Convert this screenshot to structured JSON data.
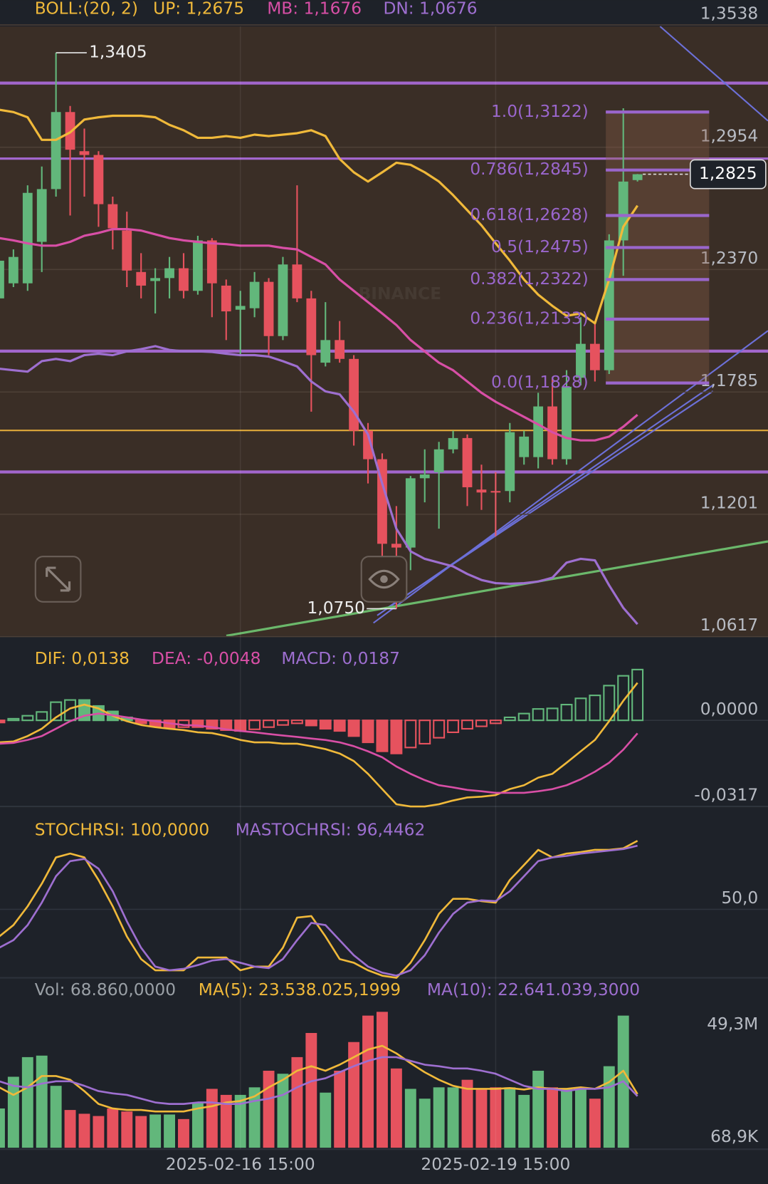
{
  "chart_data": [
    {
      "type": "candlestick",
      "indicator": "BOLL:(20, 2)",
      "indicator_color": "#f0b93a",
      "up_color": "#62b77b",
      "down_color": "#e6525e",
      "watermark": "BINANCE",
      "grid": true,
      "ylim": [
        1.0617,
        1.3538
      ],
      "yticks": [
        {
          "value": 1.3538,
          "label": "1,3538"
        },
        {
          "value": 1.2954,
          "label": "1,2954"
        },
        {
          "value": 1.237,
          "label": "1,2370"
        },
        {
          "value": 1.1785,
          "label": "1,1785"
        },
        {
          "value": 1.1201,
          "label": "1,1201"
        },
        {
          "value": 1.0617,
          "label": "1,0617"
        }
      ],
      "open": [
        1.2232,
        1.2304,
        1.2304,
        1.2502,
        1.2754,
        1.3122,
        1.2935,
        1.2917,
        1.2682,
        1.2556,
        1.2358,
        1.2315,
        1.2329,
        1.2376,
        1.2268,
        1.2509,
        1.2293,
        1.2178,
        1.2185,
        1.2311,
        1.2052,
        1.2394,
        1.2232,
        1.1925,
        1.2033,
        1.1943,
        1.16,
        1.1464,
        1.106,
        1.1042,
        1.1373,
        1.1402,
        1.1511,
        1.1565,
        1.1319,
        1.1312,
        1.1312,
        1.1474,
        1.1474,
        1.1716,
        1.1464,
        1.1853,
        1.2015,
        1.1889,
        1.2509,
        1.2797
      ],
      "high": [
        1.243,
        1.2466,
        1.2772,
        1.2862,
        1.3405,
        1.3151,
        1.3043,
        1.2935,
        1.2718,
        1.2646,
        1.2448,
        1.2376,
        1.243,
        1.2448,
        1.2531,
        1.252,
        1.2322,
        1.2268,
        1.2358,
        1.2329,
        1.243,
        1.2772,
        1.2268,
        1.2214,
        1.2124,
        1.1961,
        1.1637,
        1.1492,
        1.124,
        1.1384,
        1.1511,
        1.1547,
        1.16,
        1.1582,
        1.1438,
        1.1402,
        1.1637,
        1.16,
        1.1781,
        1.1853,
        1.1889,
        1.2142,
        1.2124,
        1.2538,
        1.314,
        1.2826
      ],
      "low": [
        1.2214,
        1.2286,
        1.2268,
        1.2358,
        1.2718,
        1.2628,
        1.2718,
        1.2574,
        1.2466,
        1.2286,
        1.2232,
        1.216,
        1.2232,
        1.2232,
        1.225,
        1.2142,
        1.2033,
        1.1961,
        1.2142,
        1.1961,
        1.2033,
        1.2214,
        1.1691,
        1.1907,
        1.1925,
        1.1529,
        1.1348,
        1.0988,
        1.075,
        1.0934,
        1.1258,
        1.1132,
        1.1492,
        1.124,
        1.1222,
        1.1096,
        1.1258,
        1.1438,
        1.142,
        1.1438,
        1.1438,
        1.1817,
        1.1835,
        1.1871,
        1.234,
        1.279
      ],
      "close": [
        1.2412,
        1.243,
        1.2736,
        1.2754,
        1.3122,
        1.2942,
        1.2917,
        1.2682,
        1.2567,
        1.2365,
        1.2293,
        1.2329,
        1.2376,
        1.2268,
        1.2509,
        1.2304,
        1.217,
        1.2196,
        1.2311,
        1.2052,
        1.2394,
        1.2232,
        1.1961,
        1.2033,
        1.1943,
        1.16,
        1.1464,
        1.106,
        1.1042,
        1.1373,
        1.1391,
        1.1511,
        1.1565,
        1.133,
        1.1305,
        1.1305,
        1.1593,
        1.1572,
        1.1716,
        1.1464,
        1.181,
        1.2015,
        1.1889,
        1.2509,
        1.279,
        1.2825
      ],
      "series": [
        {
          "name": "UP: 1,2675",
          "color": "#f0b93a",
          "values": [
            1.3133,
            1.3122,
            1.3097,
            1.2989,
            1.2989,
            1.3025,
            1.3086,
            1.3097,
            1.3104,
            1.3104,
            1.3104,
            1.3097,
            1.3061,
            1.3035,
            1.2999,
            1.2999,
            1.3007,
            1.2999,
            1.3014,
            1.3007,
            1.3014,
            1.3021,
            1.3035,
            1.3007,
            1.2898,
            1.2834,
            1.279,
            1.2834,
            1.288,
            1.287,
            1.2834,
            1.279,
            1.2725,
            1.2653,
            1.2581,
            1.2495,
            1.2412,
            1.2322,
            1.225,
            1.2196,
            1.2149,
            1.216,
            1.2113,
            1.2322,
            1.2574,
            1.2675
          ]
        },
        {
          "name": "MB: 1,1676",
          "color": "#d84fa6",
          "values": [
            1.252,
            1.2509,
            1.2495,
            1.2484,
            1.2484,
            1.2502,
            1.2531,
            1.2545,
            1.2563,
            1.2563,
            1.2556,
            1.2538,
            1.252,
            1.2509,
            1.2502,
            1.2495,
            1.2491,
            1.2484,
            1.2484,
            1.2484,
            1.2473,
            1.2466,
            1.243,
            1.2394,
            1.2322,
            1.2268,
            1.2214,
            1.216,
            1.2105,
            1.2033,
            1.1979,
            1.1925,
            1.1889,
            1.1835,
            1.1781,
            1.1738,
            1.1702,
            1.1666,
            1.163,
            1.1593,
            1.1565,
            1.1554,
            1.1554,
            1.1572,
            1.1619,
            1.1676
          ]
        },
        {
          "name": "DN: 1,0676",
          "color": "#9e6fd0",
          "values": [
            1.1896,
            1.1889,
            1.1882,
            1.1932,
            1.1943,
            1.1932,
            1.1961,
            1.1968,
            1.1961,
            1.1979,
            1.199,
            1.2004,
            1.1986,
            1.1979,
            1.1979,
            1.1976,
            1.1968,
            1.1961,
            1.1961,
            1.1954,
            1.1932,
            1.1907,
            1.1835,
            1.1788,
            1.1774,
            1.1691,
            1.1582,
            1.1348,
            1.1132,
            1.1024,
            1.0988,
            1.097,
            1.0952,
            1.0916,
            1.0887,
            1.0872,
            1.0869,
            1.0872,
            1.088,
            1.0898,
            1.097,
            1.0988,
            1.0981,
            1.0862,
            1.0754,
            1.0676
          ]
        }
      ],
      "fib_color": "#9a66cc",
      "fib_levels": [
        {
          "label": "1.0(1,3122)",
          "value": 1.3122
        },
        {
          "label": "0.786(1,2845)",
          "value": 1.2845
        },
        {
          "label": "0.618(1,2628)",
          "value": 1.2628
        },
        {
          "label": "0.5(1,2475)",
          "value": 1.2475
        },
        {
          "label": "0.382(1,2322)",
          "value": 1.2322
        },
        {
          "label": "0.236(1,2133)",
          "value": 1.2133
        },
        {
          "label": "0.0(1,1828)",
          "value": 1.1828
        }
      ],
      "high_label": {
        "value": 1.3405,
        "label": "1,3405"
      },
      "low_label": {
        "value": 1.075,
        "label": "1,0750"
      },
      "last_price": {
        "value": 1.2825,
        "label": "1,2825"
      }
    },
    {
      "type": "macd",
      "up_color": "#62b77b",
      "down_color": "#e6525e",
      "grid": true,
      "ylim": [
        -0.0317,
        0.0303
      ],
      "yticks": [
        {
          "value": 0,
          "label": "0,0000"
        },
        {
          "value": -0.0317,
          "label": "-0,0317"
        }
      ],
      "series": [
        {
          "name": "DIF: 0,0138",
          "color": "#f0b93a",
          "values": [
            -0.0081,
            -0.0078,
            -0.0058,
            -0.0031,
            0.0011,
            0.0044,
            0.0058,
            0.0044,
            0.0017,
            -0.0003,
            -0.0017,
            -0.0025,
            -0.0031,
            -0.0036,
            -0.0044,
            -0.0047,
            -0.0058,
            -0.0072,
            -0.0081,
            -0.0081,
            -0.0086,
            -0.0086,
            -0.0095,
            -0.0106,
            -0.0122,
            -0.015,
            -0.0197,
            -0.0253,
            -0.0309,
            -0.0317,
            -0.0317,
            -0.0309,
            -0.0295,
            -0.0284,
            -0.0281,
            -0.0275,
            -0.0253,
            -0.0239,
            -0.0211,
            -0.0197,
            -0.0156,
            -0.0114,
            -0.0072,
            -0.0003,
            0.0072,
            0.0138
          ]
        },
        {
          "name": "DEA: -0,0048",
          "color": "#d84fa6",
          "values": [
            -0.0086,
            -0.0083,
            -0.0072,
            -0.0058,
            -0.0031,
            -0.0003,
            0.0017,
            0.0025,
            0.0019,
            0.0011,
            0.0003,
            -0.0003,
            -0.0011,
            -0.0017,
            -0.0019,
            -0.0025,
            -0.0033,
            -0.0039,
            -0.0044,
            -0.005,
            -0.0056,
            -0.0061,
            -0.0067,
            -0.0072,
            -0.0081,
            -0.0095,
            -0.0114,
            -0.0136,
            -0.017,
            -0.0197,
            -0.022,
            -0.0239,
            -0.0247,
            -0.0256,
            -0.0261,
            -0.0267,
            -0.0267,
            -0.0267,
            -0.0261,
            -0.0253,
            -0.0239,
            -0.0217,
            -0.0189,
            -0.0156,
            -0.0108,
            -0.0048
          ]
        },
        {
          "name": "MACD: 0,0187",
          "color": "#9e6fd0",
          "style": "histogram",
          "values": [
            -0.0008,
            0.0006,
            0.0017,
            0.0031,
            0.0067,
            0.0075,
            0.0075,
            0.0053,
            0.0033,
            0.0011,
            -0.0011,
            -0.0022,
            -0.0028,
            -0.0025,
            -0.0025,
            -0.0031,
            -0.0036,
            -0.0039,
            -0.0033,
            -0.0025,
            -0.0017,
            -0.0011,
            -0.0019,
            -0.0031,
            -0.0039,
            -0.0058,
            -0.0081,
            -0.0114,
            -0.0122,
            -0.01,
            -0.0086,
            -0.0064,
            -0.0044,
            -0.0031,
            -0.0022,
            -0.0011,
            0.0011,
            0.0025,
            0.0042,
            0.0044,
            0.0058,
            0.0081,
            0.0092,
            0.0128,
            0.0164,
            0.0187
          ]
        }
      ]
    },
    {
      "type": "line",
      "grid": true,
      "ylim": [
        0,
        124
      ],
      "yticks": [
        {
          "value": 50,
          "label": "50,0"
        }
      ],
      "series": [
        {
          "name": "STOCHRSI: 100,0000",
          "color": "#f0b93a",
          "values": [
            30.2,
            38.5,
            52.2,
            68.7,
            87.9,
            90.7,
            87.9,
            71.4,
            52.2,
            30.2,
            13.7,
            5.5,
            5.5,
            5.5,
            14.8,
            14.8,
            14.8,
            5.5,
            8.2,
            8.2,
            22.0,
            44.0,
            45.1,
            30.2,
            13.7,
            11.0,
            5.5,
            1.6,
            0,
            11.0,
            27.5,
            46.7,
            57.7,
            57.7,
            56.0,
            54.9,
            71.4,
            82.4,
            93.4,
            87.9,
            90.7,
            91.8,
            93.4,
            93.4,
            94.5,
            100
          ]
        },
        {
          "name": "MASTOCHRSI: 96,4462",
          "color": "#9e6fd0",
          "values": [
            22.0,
            27.5,
            38.5,
            54.9,
            74.2,
            85.2,
            86.8,
            79.7,
            63.2,
            41.2,
            22.0,
            8.2,
            5.5,
            6.6,
            9.3,
            12.6,
            13.7,
            11.0,
            8.2,
            7.1,
            13.7,
            27.5,
            40.1,
            38.5,
            27.5,
            16.5,
            8.2,
            3.8,
            1.6,
            5.5,
            16.5,
            33.0,
            46.7,
            54.9,
            56.6,
            56.0,
            63.2,
            74.2,
            85.2,
            87.9,
            89.0,
            90.7,
            91.8,
            92.9,
            94.0,
            96.4462
          ]
        }
      ]
    },
    {
      "type": "volume",
      "up_color": "#62b77b",
      "down_color": "#e6525e",
      "grid": false,
      "ylim": [
        0.0689,
        73.75
      ],
      "yticks": [
        {
          "value": 49.3,
          "label": "49,3M"
        },
        {
          "value": 0.0689,
          "label": "68,9K"
        }
      ],
      "categories": [
        null,
        null,
        null,
        null,
        null,
        null,
        null,
        null,
        null,
        null,
        null,
        null,
        null,
        null,
        null,
        null,
        null,
        "2025-02-16 15:00",
        null,
        null,
        null,
        null,
        null,
        null,
        null,
        null,
        null,
        null,
        null,
        null,
        null,
        null,
        null,
        null,
        null,
        "2025-02-19 15:00",
        null,
        null,
        null,
        null,
        null,
        null,
        null,
        null,
        null,
        null
      ],
      "series": [
        {
          "name": "Vol: 68.860,0000",
          "color": "#9aa0a6",
          "style": "bar",
          "values": [
            17.25,
            31.13,
            39.72,
            40.38,
            27.16,
            16.59,
            14.94,
            13.95,
            17.25,
            15.93,
            13.95,
            14.61,
            14.61,
            12.62,
            19.89,
            25.84,
            23.2,
            23.2,
            26.5,
            33.77,
            32.45,
            39.72,
            50.29,
            24.19,
            33.77,
            46.32,
            57.89,
            59.54,
            34.76,
            25.84,
            21.54,
            26.5,
            26.5,
            29.81,
            25.51,
            26.5,
            26.5,
            23.2,
            33.77,
            26.5,
            25.84,
            26.5,
            21.54,
            35.75,
            57.89,
            0.06886
          ]
        },
        {
          "name": "MA(5): 23.538.025,1999",
          "color": "#f0b93a",
          "values": [
            26.5,
            23.2,
            26.5,
            31.46,
            31.46,
            29.81,
            24.85,
            19.23,
            17.25,
            16.59,
            16.59,
            15.93,
            15.93,
            15.93,
            17.25,
            18.24,
            19.89,
            20.55,
            22.54,
            26.5,
            29.81,
            33.77,
            35.75,
            33.77,
            36.41,
            39.72,
            43.02,
            44.67,
            41.37,
            37.07,
            33.11,
            29.81,
            27.16,
            25.84,
            25.84,
            25.84,
            26.17,
            25.51,
            26.5,
            25.84,
            25.84,
            26.5,
            25.84,
            28.81,
            33.77,
            23.538
          ]
        },
        {
          "name": "MA(10): 22.641.039,3000",
          "color": "#9e6fd0",
          "values": [
            29.15,
            27.16,
            26.5,
            28.15,
            29.15,
            29.15,
            27.16,
            24.85,
            23.86,
            23.2,
            21.54,
            19.89,
            19.23,
            19.23,
            19.89,
            19.89,
            19.23,
            19.23,
            20.55,
            21.54,
            23.2,
            26.5,
            29.15,
            30.47,
            33.11,
            35.75,
            38.07,
            39.72,
            39.72,
            38.07,
            36.41,
            35.75,
            34.76,
            34.76,
            33.77,
            32.45,
            29.81,
            27.16,
            25.84,
            25.84,
            24.85,
            25.84,
            25.84,
            26.5,
            29.15,
            22.641
          ]
        }
      ]
    }
  ]
}
